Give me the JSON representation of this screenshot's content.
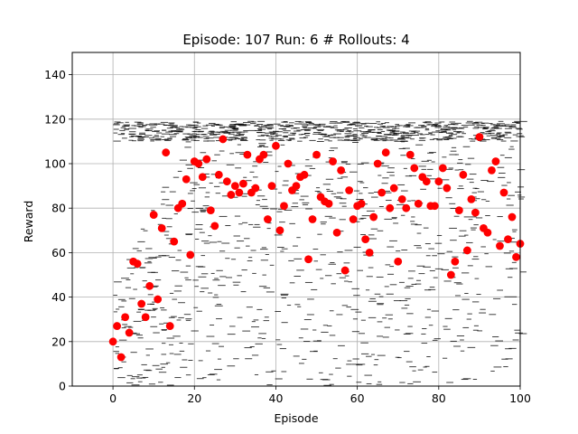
{
  "chart_data": {
    "type": "scatter",
    "title": "Episode: 107 Run: 6 # Rollouts: 4",
    "xlabel": "Episode",
    "ylabel": "Reward",
    "xlim": [
      -10,
      100
    ],
    "ylim": [
      0,
      150
    ],
    "xticks": [
      0,
      20,
      40,
      60,
      80,
      100
    ],
    "yticks": [
      0,
      20,
      40,
      60,
      80,
      100,
      120,
      140
    ],
    "grid": true,
    "legend": "none",
    "colors": {
      "points": "#ff0000",
      "dashes": "#000000",
      "grid": "#b0b0b0"
    },
    "series": [
      {
        "marker": "circle",
        "x": [
          0,
          1,
          2,
          3,
          4,
          5,
          6,
          7,
          8,
          9,
          10,
          11,
          12,
          13,
          14,
          15,
          16,
          17,
          18,
          19,
          20,
          21,
          22,
          23,
          24,
          25,
          26,
          27,
          28,
          29,
          30,
          31,
          32,
          33,
          34,
          35,
          36,
          37,
          38,
          39,
          40,
          41,
          42,
          43,
          44,
          45,
          46,
          47,
          48,
          49,
          50,
          51,
          52,
          53,
          54,
          55,
          56,
          57,
          58,
          59,
          60,
          61,
          62,
          63,
          64,
          65,
          66,
          67,
          68,
          69,
          70,
          71,
          72,
          73,
          74,
          75,
          76,
          77,
          78,
          79,
          80,
          81,
          82,
          83,
          84,
          85,
          86,
          87,
          88,
          89,
          90,
          91,
          92,
          93,
          94,
          95,
          96,
          97,
          98,
          99,
          100
        ],
        "y": [
          20,
          27,
          13,
          31,
          24,
          56,
          55,
          37,
          31,
          45,
          77,
          39,
          71,
          105,
          27,
          65,
          80,
          82,
          93,
          59,
          101,
          100,
          94,
          102,
          79,
          72,
          95,
          111,
          92,
          86,
          90,
          87,
          91,
          104,
          87,
          89,
          102,
          104,
          75,
          90,
          108,
          70,
          81,
          100,
          88,
          90,
          94,
          95,
          57,
          75,
          104,
          85,
          83,
          82,
          101,
          69,
          97,
          52,
          88,
          75,
          81,
          82,
          66,
          60,
          76,
          100,
          87,
          105,
          80,
          89,
          56,
          84,
          80,
          104,
          98,
          82,
          94,
          92,
          81,
          81,
          92,
          98,
          89,
          50,
          56,
          79,
          95,
          61,
          84,
          78,
          112,
          71,
          69,
          97,
          101,
          63,
          87,
          66,
          76,
          58,
          64
        ]
      }
    ]
  }
}
